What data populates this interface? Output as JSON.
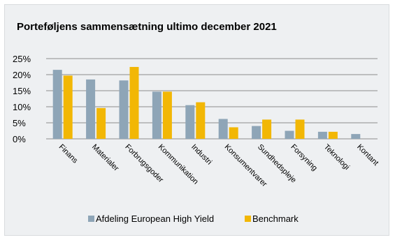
{
  "chart_data": {
    "type": "bar",
    "title": "Porteføljens sammensætning ultimo december 2021",
    "categories": [
      "Finans",
      "Materialer",
      "Forbrugsgoder",
      "Kommunikation",
      "Industri",
      "Konsumentvarer",
      "Sundhedspleje",
      "Forsyning",
      "Teknologi",
      "Kontant"
    ],
    "series": [
      {
        "name": "Afdeling European High Yield",
        "color": "#8ea5b7",
        "values": [
          21.5,
          18.5,
          18.2,
          14.7,
          10.5,
          6.2,
          4.0,
          2.5,
          2.2,
          1.5
        ]
      },
      {
        "name": "Benchmark",
        "color": "#f2b705",
        "values": [
          19.7,
          9.6,
          22.4,
          14.7,
          11.4,
          3.6,
          6.0,
          6.0,
          2.2,
          0
        ]
      }
    ],
    "yticks": [
      "0%",
      "5%",
      "10%",
      "15%",
      "20%",
      "25%"
    ],
    "ylim": [
      0,
      25
    ],
    "grid": true,
    "legend": "bottom"
  }
}
